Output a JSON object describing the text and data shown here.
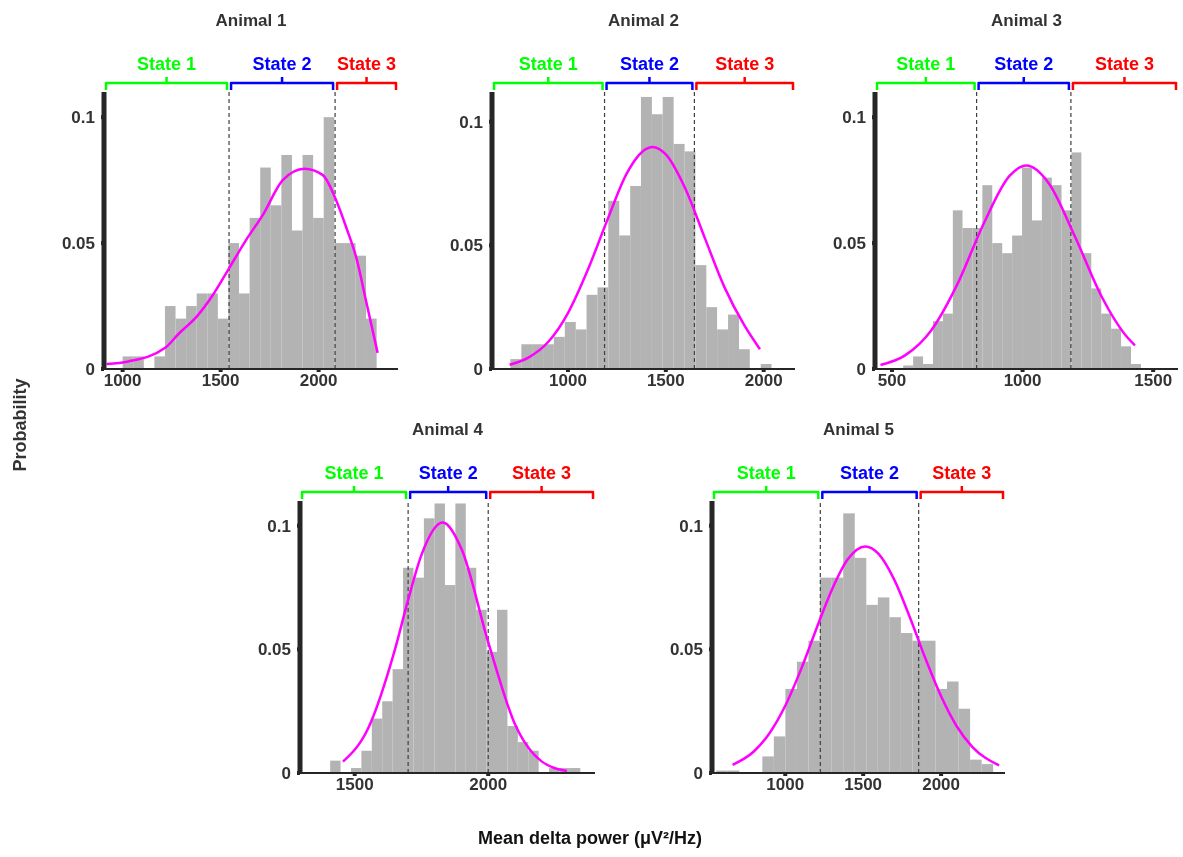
{
  "chart_data": [
    {
      "type": "histogram",
      "title": "Animal 1",
      "ylabel": "Probability",
      "bins": [
        1000,
        1054,
        1108,
        1162,
        1216,
        1270,
        1324,
        1378,
        1432,
        1486,
        1540,
        1594,
        1648,
        1702,
        1756,
        1810,
        1864,
        1918,
        1972,
        2026,
        2080,
        2134,
        2188,
        2242,
        2296
      ],
      "values": [
        0.005,
        0.005,
        0,
        0.005,
        0.025,
        0.02,
        0.025,
        0.03,
        0.03,
        0.02,
        0.05,
        0.03,
        0.06,
        0.08,
        0.065,
        0.085,
        0.055,
        0.085,
        0.06,
        0.1,
        0.05,
        0.05,
        0.045,
        0.02
      ],
      "color": "#b3b3b3",
      "series": [
        {
          "type": "line",
          "color": "#ff00ff",
          "x": [
            918,
            1029,
            1217,
            1286,
            1380,
            1457,
            1543,
            1628,
            1714,
            1817,
            1928,
            2022,
            2084,
            2142,
            2193,
            2245,
            2301
          ],
          "values": [
            0.002,
            0.003,
            0.0084,
            0.014,
            0.021,
            0.029,
            0.04,
            0.051,
            0.061,
            0.075,
            0.0795,
            0.077,
            0.068,
            0.056,
            0.044,
            0.026,
            0.0064
          ]
        }
      ],
      "xlim": [
        905,
        2405
      ],
      "xticks": [
        1000,
        1500,
        2000
      ],
      "ylim": [
        0,
        0.11
      ],
      "yticks": [
        0,
        0.05,
        0.1
      ],
      "ref_lines": [
        {
          "axis": "x",
          "value": 1543,
          "color": "#404040",
          "line_style": "dashed"
        },
        {
          "axis": "x",
          "value": 2084,
          "color": "#404040",
          "line_style": "dashed"
        }
      ],
      "annotations": [
        "State 1",
        "State 2",
        "State 3"
      ]
    },
    {
      "type": "histogram",
      "title": "Animal 2",
      "bins": [
        706,
        762,
        817,
        873,
        928,
        984,
        1040,
        1095,
        1151,
        1206,
        1262,
        1318,
        1373,
        1429,
        1484,
        1540,
        1596,
        1651,
        1707,
        1762,
        1818,
        1874,
        1929,
        1985,
        2040
      ],
      "values": [
        0.004,
        0.01,
        0.01,
        0.01,
        0.013,
        0.019,
        0.016,
        0.03,
        0.033,
        0.068,
        0.054,
        0.074,
        0.11,
        0.103,
        0.11,
        0.091,
        0.088,
        0.042,
        0.025,
        0.016,
        0.022,
        0.008,
        0,
        0.002
      ],
      "color": "#b3b3b3",
      "series": [
        {
          "type": "line",
          "color": "#ff00ff",
          "x": [
            702,
            800,
            900,
            1000,
            1100,
            1200,
            1300,
            1400,
            1432,
            1500,
            1600,
            1700,
            1800,
            1900,
            1981
          ],
          "values": [
            0.0017,
            0.0047,
            0.011,
            0.0226,
            0.0398,
            0.06,
            0.079,
            0.089,
            0.0898,
            0.0868,
            0.0729,
            0.0528,
            0.033,
            0.0178,
            0.008
          ]
        }
      ],
      "xlim": [
        612,
        2160
      ],
      "xticks": [
        1000,
        1500,
        2000
      ],
      "ylim": [
        0,
        0.112
      ],
      "yticks": [
        0,
        0.05,
        0.1
      ],
      "ref_lines": [
        {
          "axis": "x",
          "value": 1187,
          "color": "#404040",
          "line_style": "dashed"
        },
        {
          "axis": "x",
          "value": 1646,
          "color": "#404040",
          "line_style": "dashed"
        }
      ],
      "annotations": [
        "State 1",
        "State 2",
        "State 3"
      ]
    },
    {
      "type": "histogram",
      "title": "Animal 3",
      "bins": [
        543,
        581,
        619,
        657,
        695,
        733,
        770,
        808,
        846,
        884,
        922,
        960,
        998,
        1036,
        1074,
        1112,
        1149,
        1187,
        1225,
        1263,
        1301,
        1339,
        1377,
        1415,
        1453
      ],
      "values": [
        0.0014,
        0.005,
        0.002,
        0.019,
        0.022,
        0.063,
        0.056,
        0.056,
        0.073,
        0.05,
        0.046,
        0.053,
        0.08,
        0.059,
        0.076,
        0.073,
        0.063,
        0.086,
        0.046,
        0.032,
        0.022,
        0.016,
        0.009,
        0.002
      ],
      "color": "#b3b3b3",
      "series": [
        {
          "type": "line",
          "color": "#ff00ff",
          "x": [
            456,
            550,
            650,
            750,
            850,
            950,
            1015,
            1100,
            1200,
            1300,
            1400,
            1430
          ],
          "values": [
            0.0016,
            0.0054,
            0.0153,
            0.0336,
            0.0575,
            0.0767,
            0.0808,
            0.0738,
            0.0527,
            0.0293,
            0.0127,
            0.0094
          ]
        }
      ],
      "xlim": [
        435,
        1595
      ],
      "xticks": [
        500,
        1000,
        1500
      ],
      "ylim": [
        0,
        0.11
      ],
      "yticks": [
        0,
        0.05,
        0.1
      ],
      "ref_lines": [
        {
          "axis": "x",
          "value": 824,
          "color": "#404040",
          "line_style": "dashed"
        },
        {
          "axis": "x",
          "value": 1185,
          "color": "#404040",
          "line_style": "dashed"
        }
      ],
      "annotations": [
        "State 1",
        "State 2",
        "State 3"
      ]
    },
    {
      "type": "histogram",
      "title": "Animal 4",
      "xlabel": "Mean delta power (μV²/Hz)",
      "bins": [
        1408,
        1447,
        1486,
        1525,
        1564,
        1603,
        1642,
        1681,
        1720,
        1759,
        1799,
        1838,
        1877,
        1916,
        1955,
        1994,
        2033,
        2072,
        2111,
        2150,
        2189,
        2228,
        2267,
        2306,
        2345
      ],
      "values": [
        0.005,
        0,
        0.002,
        0.009,
        0.022,
        0.029,
        0.042,
        0.083,
        0.079,
        0.103,
        0.109,
        0.076,
        0.109,
        0.083,
        0.066,
        0.049,
        0.066,
        0.019,
        0.0125,
        0.009,
        0,
        0.002,
        0.002,
        0.002
      ],
      "color": "#b3b3b3",
      "series": [
        {
          "type": "line",
          "color": "#ff00ff",
          "x": [
            1456,
            1550,
            1650,
            1700,
            1750,
            1829,
            1900,
            2000,
            2100,
            2200,
            2295
          ],
          "values": [
            0.0046,
            0.018,
            0.0497,
            0.07,
            0.0882,
            0.1013,
            0.0906,
            0.0529,
            0.0198,
            0.0047,
            0.0008
          ]
        }
      ],
      "xlim": [
        1295,
        2400
      ],
      "xticks": [
        1500,
        2000
      ],
      "ylim": [
        0,
        0.11
      ],
      "yticks": [
        0,
        0.05,
        0.1
      ],
      "ref_lines": [
        {
          "axis": "x",
          "value": 1700,
          "color": "#404040",
          "line_style": "dashed"
        },
        {
          "axis": "x",
          "value": 2000,
          "color": "#404040",
          "line_style": "dashed"
        }
      ],
      "annotations": [
        "State 1",
        "State 2",
        "State 3"
      ]
    },
    {
      "type": "histogram",
      "title": "Animal 5",
      "bins": [
        557,
        631,
        705,
        779,
        853,
        927,
        1001,
        1075,
        1149,
        1223,
        1298,
        1372,
        1446,
        1520,
        1594,
        1668,
        1742,
        1816,
        1890,
        1964,
        2038,
        2112,
        2186,
        2260,
        2334
      ],
      "values": [
        0.001,
        0.001,
        0,
        0,
        0.0067,
        0.0148,
        0.034,
        0.045,
        0.0535,
        0.079,
        0.079,
        0.105,
        0.087,
        0.068,
        0.071,
        0.063,
        0.0566,
        0.0535,
        0.0535,
        0.034,
        0.037,
        0.026,
        0.0054,
        0.0036
      ],
      "color": "#b3b3b3",
      "series": [
        {
          "type": "line",
          "color": "#ff00ff",
          "x": [
            662,
            800,
            900,
            1000,
            1100,
            1225,
            1300,
            1400,
            1514,
            1600,
            1700,
            1800,
            1900,
            2000,
            2100,
            2200,
            2372
          ],
          "values": [
            0.0033,
            0.0088,
            0.0162,
            0.0272,
            0.0417,
            0.0625,
            0.0742,
            0.0863,
            0.0916,
            0.0885,
            0.0781,
            0.0629,
            0.0462,
            0.031,
            0.0189,
            0.0106,
            0.0031
          ]
        }
      ],
      "xlim": [
        530,
        2410
      ],
      "xticks": [
        1000,
        1500,
        2000
      ],
      "ylim": [
        0,
        0.11
      ],
      "yticks": [
        0,
        0.05,
        0.1
      ],
      "ref_lines": [
        {
          "axis": "x",
          "value": 1225,
          "color": "#404040",
          "line_style": "dashed"
        },
        {
          "axis": "x",
          "value": 1856,
          "color": "#404040",
          "line_style": "dashed"
        }
      ],
      "annotations": [
        "State 1",
        "State 2",
        "State 3"
      ]
    }
  ]
}
